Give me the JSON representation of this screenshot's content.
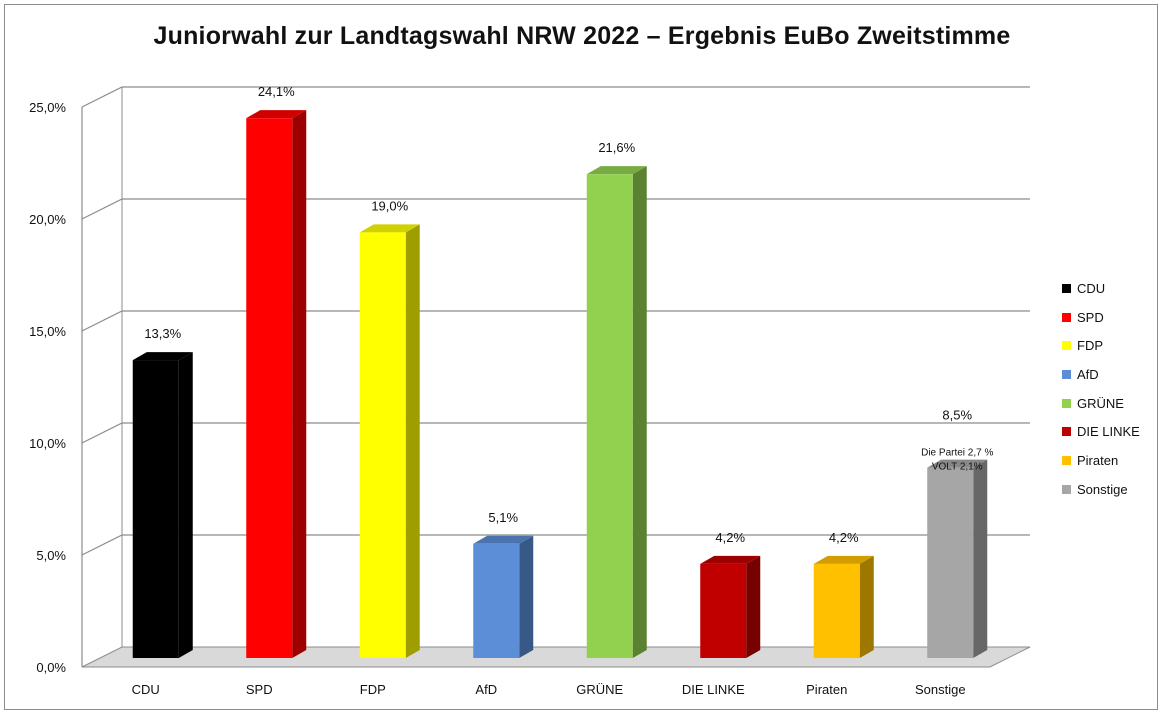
{
  "chart_data": {
    "type": "bar",
    "title": "Juniorwahl zur Landtagswahl NRW 2022 – Ergebnis EuBo Zweitstimme",
    "xlabel": "",
    "ylabel": "",
    "ylim": [
      0,
      25
    ],
    "grid": true,
    "legend_position": "right",
    "y_ticks": [
      0,
      5,
      10,
      15,
      20,
      25
    ],
    "y_tick_labels": [
      "0,0%",
      "5,0%",
      "10,0%",
      "15,0%",
      "20,0%",
      "25,0%"
    ],
    "categories": [
      "CDU",
      "SPD",
      "FDP",
      "AfD",
      "GRÜNE",
      "DIE LINKE",
      "Piraten",
      "Sonstige"
    ],
    "values": [
      13.3,
      24.1,
      19.0,
      5.1,
      21.6,
      4.2,
      4.2,
      8.5
    ],
    "value_labels": [
      "13,3%",
      "24,1%",
      "19,0%",
      "5,1%",
      "21,6%",
      "4,2%",
      "4,2%",
      "8,5%"
    ],
    "colors": [
      "#000000",
      "#ff0000",
      "#ffff00",
      "#5b8ed6",
      "#92d050",
      "#c00000",
      "#ffc000",
      "#a6a6a6"
    ],
    "annotations": [
      {
        "category": "Sonstige",
        "lines": [
          "Die Partei 2,7 %",
          "VOLT 2,1%"
        ]
      }
    ]
  }
}
